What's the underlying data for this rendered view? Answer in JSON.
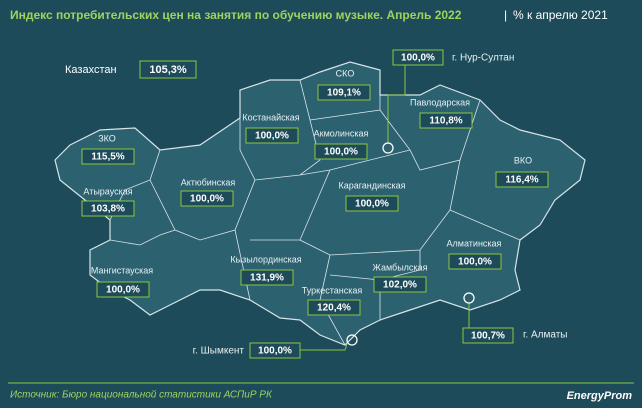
{
  "header": {
    "title": "Индекс потребительских цен на занятия по обучению музыке. Апрель 2022",
    "subtitle": "% к апрелю 2021"
  },
  "national": {
    "label": "Казахстан",
    "value": "105,3%"
  },
  "regions": [
    {
      "label": "СКО",
      "value": "109,1%"
    },
    {
      "label": "Павлодарская",
      "value": "110,8%"
    },
    {
      "label": "Костанайская",
      "value": "100,0%"
    },
    {
      "label": "Акмолинская",
      "value": "100,0%"
    },
    {
      "label": "ЗКО",
      "value": "115,5%"
    },
    {
      "label": "ВКО",
      "value": "116,4%"
    },
    {
      "label": "Атырауская",
      "value": "103,8%"
    },
    {
      "label": "Актюбинская",
      "value": "100,0%"
    },
    {
      "label": "Карагандинская",
      "value": "100,0%"
    },
    {
      "label": "Алматинская",
      "value": "100,0%"
    },
    {
      "label": "Мангистауская",
      "value": "100,0%"
    },
    {
      "label": "Кызылординская",
      "value": "131,9%"
    },
    {
      "label": "Жамбылская",
      "value": "102,0%"
    },
    {
      "label": "Туркестанская",
      "value": "120,4%"
    }
  ],
  "cities": [
    {
      "label": "г. Нур-Султан",
      "value": "100,0%"
    },
    {
      "label": "г. Алматы",
      "value": "100,7%"
    },
    {
      "label": "г. Шымкент",
      "value": "100,0%"
    }
  ],
  "footer": {
    "source": "Источник: Бюро национальной статистики АСПиР РК",
    "brand": "EnergyProm"
  }
}
